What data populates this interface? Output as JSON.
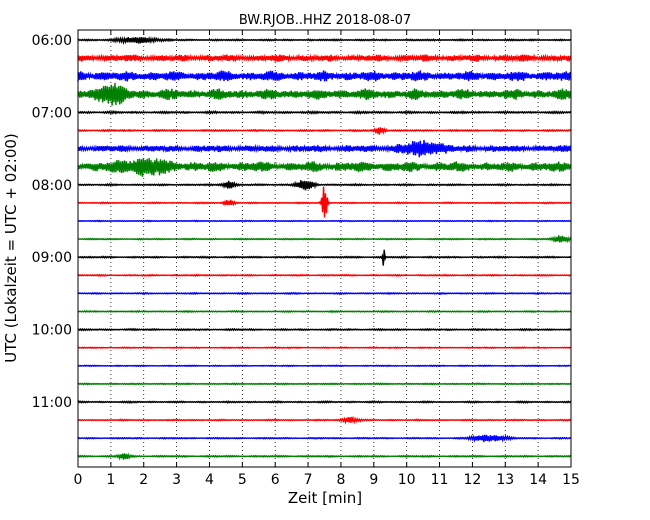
{
  "chart_data": {
    "type": "line",
    "title": "BW.RJOB..HHZ 2018-08-07",
    "xlabel": "Zeit  [min]",
    "ylabel": "UTC (Lokalzeit = UTC + 02:00)",
    "xlim": [
      0,
      15
    ],
    "x_ticks": [
      0,
      1,
      2,
      3,
      4,
      5,
      6,
      7,
      8,
      9,
      10,
      11,
      12,
      13,
      14,
      15
    ],
    "x_tick_labels": [
      "0",
      "1",
      "2",
      "3",
      "4",
      "5",
      "6",
      "7",
      "8",
      "9",
      "10",
      "11",
      "12",
      "13",
      "14",
      "15"
    ],
    "y_tick_labels": [
      {
        "row": 0,
        "label": "06:00"
      },
      {
        "row": 4,
        "label": "07:00"
      },
      {
        "row": 8,
        "label": "08:00"
      },
      {
        "row": 12,
        "label": "09:00"
      },
      {
        "row": 16,
        "label": "10:00"
      },
      {
        "row": 20,
        "label": "11:00"
      }
    ],
    "grid": "vertical dotted at each minute",
    "row_colors": [
      "#000000",
      "#ff0000",
      "#0000ff",
      "#008000"
    ],
    "series": [
      {
        "row": 0,
        "amplitude": 0.06,
        "events": [
          {
            "x": 1.8,
            "amp": 0.25,
            "width": 1.2
          }
        ]
      },
      {
        "row": 1,
        "amplitude": 0.3,
        "events": []
      },
      {
        "row": 2,
        "amplitude": 0.45,
        "events": []
      },
      {
        "row": 3,
        "amplitude": 0.45,
        "events": [
          {
            "x": 1.0,
            "amp": 0.6,
            "width": 0.9
          }
        ]
      },
      {
        "row": 4,
        "amplitude": 0.08,
        "events": []
      },
      {
        "row": 5,
        "amplitude": 0.06,
        "events": [
          {
            "x": 9.2,
            "amp": 0.3,
            "width": 0.3
          }
        ]
      },
      {
        "row": 6,
        "amplitude": 0.3,
        "events": [
          {
            "x": 10.5,
            "amp": 0.5,
            "width": 1.2
          }
        ]
      },
      {
        "row": 7,
        "amplitude": 0.45,
        "events": [
          {
            "x": 2.0,
            "amp": 0.5,
            "width": 1.5
          }
        ]
      },
      {
        "row": 8,
        "amplitude": 0.06,
        "events": [
          {
            "x": 4.6,
            "amp": 0.3,
            "width": 0.4
          },
          {
            "x": 6.9,
            "amp": 0.5,
            "width": 0.5
          }
        ]
      },
      {
        "row": 9,
        "amplitude": 0.05,
        "events": [
          {
            "x": 4.6,
            "amp": 0.3,
            "width": 0.3
          },
          {
            "x": 7.5,
            "amp": 1.6,
            "width": 0.15
          }
        ]
      },
      {
        "row": 10,
        "amplitude": 0.04,
        "events": []
      },
      {
        "row": 11,
        "amplitude": 0.05,
        "events": [
          {
            "x": 14.7,
            "amp": 0.3,
            "width": 0.5
          }
        ]
      },
      {
        "row": 12,
        "amplitude": 0.06,
        "events": [
          {
            "x": 9.3,
            "amp": 0.9,
            "width": 0.06
          }
        ]
      },
      {
        "row": 13,
        "amplitude": 0.05,
        "events": []
      },
      {
        "row": 14,
        "amplitude": 0.05,
        "events": []
      },
      {
        "row": 15,
        "amplitude": 0.05,
        "events": []
      },
      {
        "row": 16,
        "amplitude": 0.06,
        "events": []
      },
      {
        "row": 17,
        "amplitude": 0.04,
        "events": []
      },
      {
        "row": 18,
        "amplitude": 0.04,
        "events": []
      },
      {
        "row": 19,
        "amplitude": 0.05,
        "events": []
      },
      {
        "row": 20,
        "amplitude": 0.06,
        "events": []
      },
      {
        "row": 21,
        "amplitude": 0.05,
        "events": [
          {
            "x": 8.3,
            "amp": 0.25,
            "width": 0.5
          }
        ]
      },
      {
        "row": 22,
        "amplitude": 0.05,
        "events": [
          {
            "x": 12.5,
            "amp": 0.3,
            "width": 1.0
          }
        ]
      },
      {
        "row": 23,
        "amplitude": 0.06,
        "events": [
          {
            "x": 1.4,
            "amp": 0.3,
            "width": 0.3
          }
        ]
      }
    ]
  }
}
